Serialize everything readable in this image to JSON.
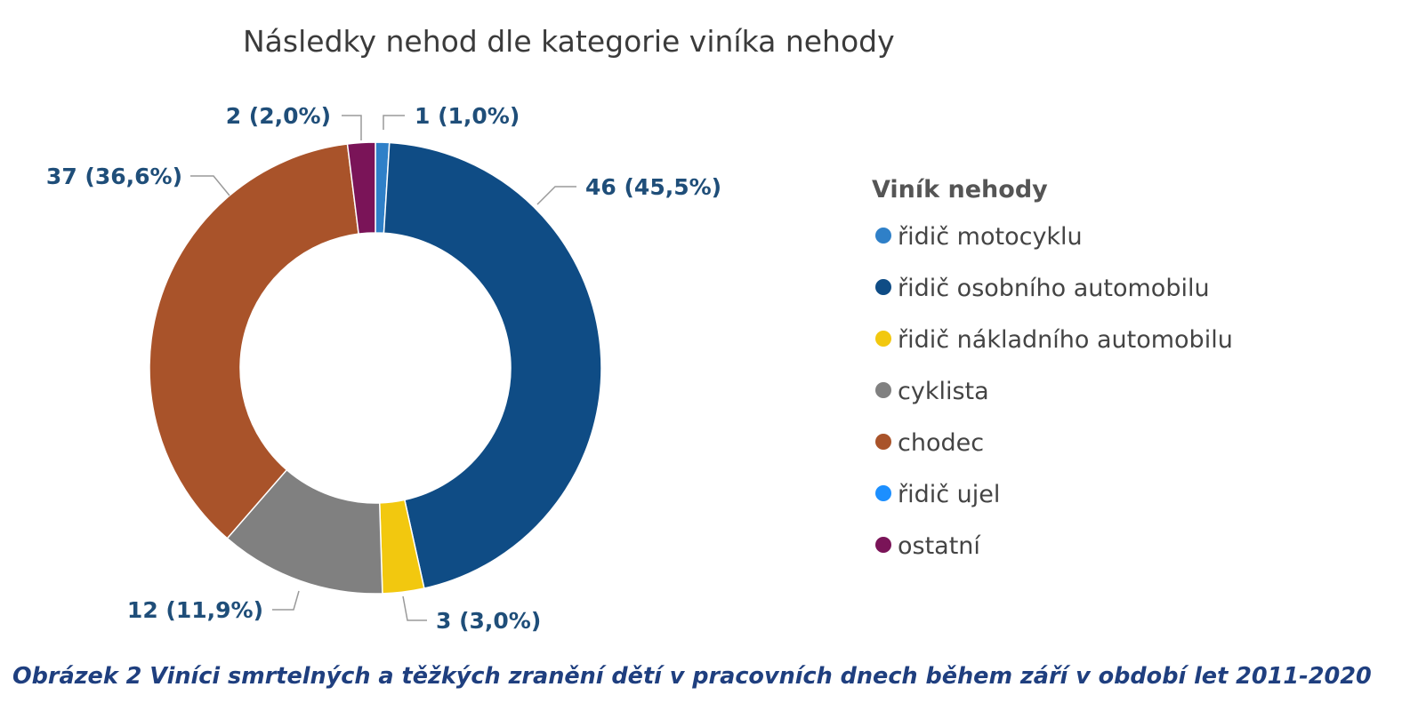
{
  "chart_data": {
    "type": "pie",
    "donut": true,
    "title": "Následky nehod dle kategorie viníka nehody",
    "legend_title": "Viník nehody",
    "legend_position": "right",
    "series": [
      {
        "name": "řidič motocyklu",
        "value": 1,
        "label": "1 (1,0%)",
        "color": "#2F80C8"
      },
      {
        "name": "řidič osobního automobilu",
        "value": 46,
        "label": "46 (45,5%)",
        "color": "#0F4C85"
      },
      {
        "name": "řidič nákladního automobilu",
        "value": 3,
        "label": "3 (3,0%)",
        "color": "#F2C80F"
      },
      {
        "name": "cyklista",
        "value": 12,
        "label": "12 (11,9%)",
        "color": "#808080"
      },
      {
        "name": "chodec",
        "value": 37,
        "label": "37 (36,6%)",
        "color": "#A9532A"
      },
      {
        "name": "řidič ujel",
        "value": 0,
        "label": "",
        "color": "#1C8FFF"
      },
      {
        "name": "ostatní",
        "value": 2,
        "label": "2 (2,0%)",
        "color": "#7A1458"
      }
    ],
    "label_color": "#1F4E79"
  },
  "caption": {
    "text": "Obrázek 2 Viníci smrtelných a těžkých zranění dětí v pracovních dnech během září v období let 2011-2020",
    "color": "#1F3F7F"
  }
}
